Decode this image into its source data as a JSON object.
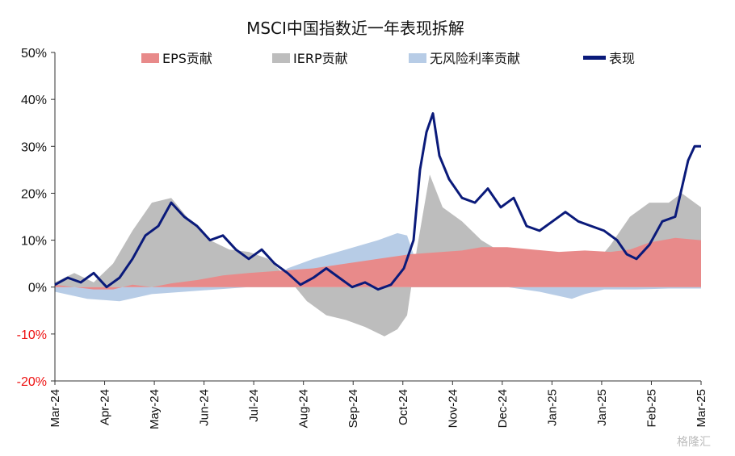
{
  "chart_data": {
    "type": "area",
    "title": "MSCI中国指数近一年表现拆解",
    "ylim": [
      -20,
      50
    ],
    "y_ticks": [
      "-20%",
      "-10%",
      "0%",
      "10%",
      "20%",
      "30%",
      "40%",
      "50%"
    ],
    "y_tick_values": [
      -20,
      -10,
      0,
      10,
      20,
      30,
      40,
      50
    ],
    "x_tick_labels": [
      "Mar-24",
      "Apr-24",
      "May-24",
      "Jun-24",
      "Jul-24",
      "Aug-24",
      "Sep-24",
      "Oct-24",
      "Nov-24",
      "Dec-24",
      "Jan-25",
      "Jan-25",
      "Feb-25",
      "Mar-25"
    ],
    "legend_position": "top",
    "colors": {
      "eps": "#e88a8a",
      "ierp": "#bdbdbd",
      "rf": "#b7cce6",
      "perf": "#0a1a7a",
      "negative_tick": "#e11111"
    },
    "series": [
      {
        "name": "EPS贡献",
        "kind": "area",
        "points": [
          [
            0,
            0.5
          ],
          [
            0.03,
            0
          ],
          [
            0.06,
            -0.5
          ],
          [
            0.09,
            -0.5
          ],
          [
            0.12,
            0.5
          ],
          [
            0.15,
            0
          ],
          [
            0.18,
            0.8
          ],
          [
            0.22,
            1.5
          ],
          [
            0.26,
            2.5
          ],
          [
            0.3,
            3
          ],
          [
            0.35,
            3.5
          ],
          [
            0.4,
            4
          ],
          [
            0.45,
            5
          ],
          [
            0.5,
            6
          ],
          [
            0.55,
            7
          ],
          [
            0.6,
            7.5
          ],
          [
            0.63,
            7.8
          ],
          [
            0.66,
            8.5
          ],
          [
            0.7,
            8.5
          ],
          [
            0.74,
            8
          ],
          [
            0.78,
            7.5
          ],
          [
            0.82,
            7.8
          ],
          [
            0.86,
            7.5
          ],
          [
            0.89,
            8
          ],
          [
            0.92,
            9.5
          ],
          [
            0.96,
            10.5
          ],
          [
            1.0,
            10
          ]
        ]
      },
      {
        "name": "IERP贡献",
        "kind": "area",
        "points": [
          [
            0,
            1
          ],
          [
            0.03,
            3
          ],
          [
            0.06,
            1
          ],
          [
            0.09,
            5
          ],
          [
            0.12,
            12
          ],
          [
            0.15,
            18
          ],
          [
            0.18,
            19
          ],
          [
            0.21,
            14
          ],
          [
            0.24,
            10
          ],
          [
            0.27,
            8
          ],
          [
            0.3,
            7.5
          ],
          [
            0.33,
            6
          ],
          [
            0.36,
            2
          ],
          [
            0.39,
            -3
          ],
          [
            0.42,
            -6
          ],
          [
            0.45,
            -7
          ],
          [
            0.48,
            -8.5
          ],
          [
            0.51,
            -10.5
          ],
          [
            0.53,
            -9
          ],
          [
            0.545,
            -6
          ],
          [
            0.56,
            8
          ],
          [
            0.58,
            24
          ],
          [
            0.6,
            17
          ],
          [
            0.63,
            14
          ],
          [
            0.66,
            10
          ],
          [
            0.69,
            7.5
          ],
          [
            0.72,
            5.5
          ],
          [
            0.75,
            5
          ],
          [
            0.78,
            3.5
          ],
          [
            0.8,
            2
          ],
          [
            0.83,
            4
          ],
          [
            0.86,
            9
          ],
          [
            0.89,
            15
          ],
          [
            0.92,
            18
          ],
          [
            0.95,
            18
          ],
          [
            0.97,
            20
          ],
          [
            1.0,
            17
          ]
        ]
      },
      {
        "name": "无风险利率贡献",
        "kind": "area",
        "points": [
          [
            0,
            -1
          ],
          [
            0.05,
            -2.5
          ],
          [
            0.1,
            -3
          ],
          [
            0.15,
            -1.5
          ],
          [
            0.2,
            -1
          ],
          [
            0.25,
            -0.5
          ],
          [
            0.3,
            0
          ],
          [
            0.33,
            0.5
          ],
          [
            0.36,
            4
          ],
          [
            0.4,
            6
          ],
          [
            0.45,
            8
          ],
          [
            0.5,
            10
          ],
          [
            0.53,
            11.5
          ],
          [
            0.545,
            11
          ],
          [
            0.56,
            5
          ],
          [
            0.6,
            2
          ],
          [
            0.65,
            1
          ],
          [
            0.7,
            0
          ],
          [
            0.75,
            -1
          ],
          [
            0.8,
            -2.5
          ],
          [
            0.82,
            -1.5
          ],
          [
            0.85,
            -0.5
          ],
          [
            0.9,
            -0.5
          ],
          [
            0.95,
            -0.3
          ],
          [
            1.0,
            -0.3
          ]
        ]
      },
      {
        "name": "表现",
        "kind": "line",
        "points": [
          [
            0,
            0.5
          ],
          [
            0.02,
            2
          ],
          [
            0.04,
            1
          ],
          [
            0.06,
            3
          ],
          [
            0.08,
            0
          ],
          [
            0.1,
            2
          ],
          [
            0.12,
            6
          ],
          [
            0.14,
            11
          ],
          [
            0.16,
            13
          ],
          [
            0.18,
            18
          ],
          [
            0.2,
            15
          ],
          [
            0.22,
            13
          ],
          [
            0.24,
            10
          ],
          [
            0.26,
            11
          ],
          [
            0.28,
            8
          ],
          [
            0.3,
            6
          ],
          [
            0.32,
            8
          ],
          [
            0.34,
            5
          ],
          [
            0.36,
            3
          ],
          [
            0.38,
            0.5
          ],
          [
            0.4,
            2
          ],
          [
            0.42,
            4
          ],
          [
            0.44,
            2
          ],
          [
            0.46,
            0
          ],
          [
            0.48,
            1
          ],
          [
            0.5,
            -0.5
          ],
          [
            0.52,
            0.5
          ],
          [
            0.54,
            4
          ],
          [
            0.555,
            10
          ],
          [
            0.565,
            25
          ],
          [
            0.575,
            33
          ],
          [
            0.585,
            37
          ],
          [
            0.595,
            28
          ],
          [
            0.61,
            23
          ],
          [
            0.63,
            19
          ],
          [
            0.65,
            18
          ],
          [
            0.67,
            21
          ],
          [
            0.69,
            17
          ],
          [
            0.71,
            19
          ],
          [
            0.73,
            13
          ],
          [
            0.75,
            12
          ],
          [
            0.77,
            14
          ],
          [
            0.79,
            16
          ],
          [
            0.81,
            14
          ],
          [
            0.83,
            13
          ],
          [
            0.85,
            12
          ],
          [
            0.87,
            10
          ],
          [
            0.885,
            7
          ],
          [
            0.9,
            6
          ],
          [
            0.92,
            9
          ],
          [
            0.94,
            14
          ],
          [
            0.96,
            15
          ],
          [
            0.97,
            21
          ],
          [
            0.98,
            27
          ],
          [
            0.99,
            30
          ],
          [
            1.0,
            30
          ]
        ]
      }
    ],
    "watermark": "格隆汇"
  }
}
